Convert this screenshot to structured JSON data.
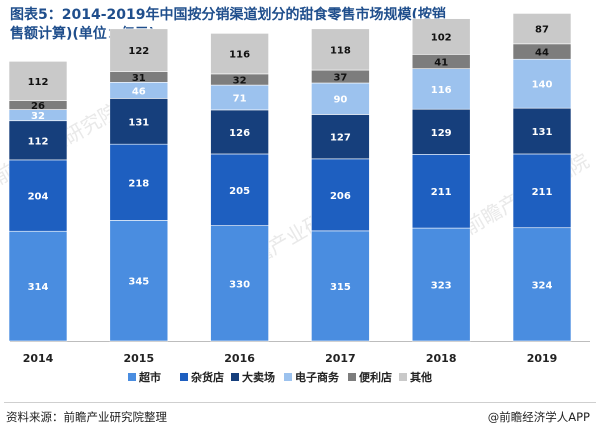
{
  "title": "图表5：2014-2019年中国按分销渠道划分的甜食零售市场规模(按销售额计算)(单位：亿元)",
  "source": "资料来源：前瞻产业研究院整理",
  "brand": "@前瞻经济学人APP",
  "watermark_text": "前瞻产业研究院",
  "chart_data": {
    "type": "bar",
    "stacked": true,
    "categories": [
      "2014",
      "2015",
      "2016",
      "2017",
      "2018",
      "2019"
    ],
    "series": [
      {
        "name": "超市",
        "color": "#4a8de0",
        "label_color": "#ffffff",
        "values": [
          314,
          345,
          330,
          315,
          323,
          324
        ]
      },
      {
        "name": "杂货店",
        "color": "#1e5fc0",
        "label_color": "#ffffff",
        "values": [
          204,
          218,
          205,
          206,
          211,
          211
        ]
      },
      {
        "name": "大卖场",
        "color": "#163f7c",
        "label_color": "#ffffff",
        "values": [
          112,
          131,
          126,
          127,
          129,
          131
        ]
      },
      {
        "name": "电子商务",
        "color": "#9cc2ee",
        "label_color": "#ffffff",
        "values": [
          32,
          46,
          71,
          90,
          116,
          140
        ]
      },
      {
        "name": "便利店",
        "color": "#7d7d7d",
        "label_color": "#111111",
        "values": [
          26,
          31,
          32,
          37,
          41,
          44
        ]
      },
      {
        "name": "其他",
        "color": "#c9c9c9",
        "label_color": "#111111",
        "values": [
          112,
          122,
          116,
          118,
          102,
          87
        ]
      }
    ],
    "legend_position": "bottom",
    "grid": false
  }
}
